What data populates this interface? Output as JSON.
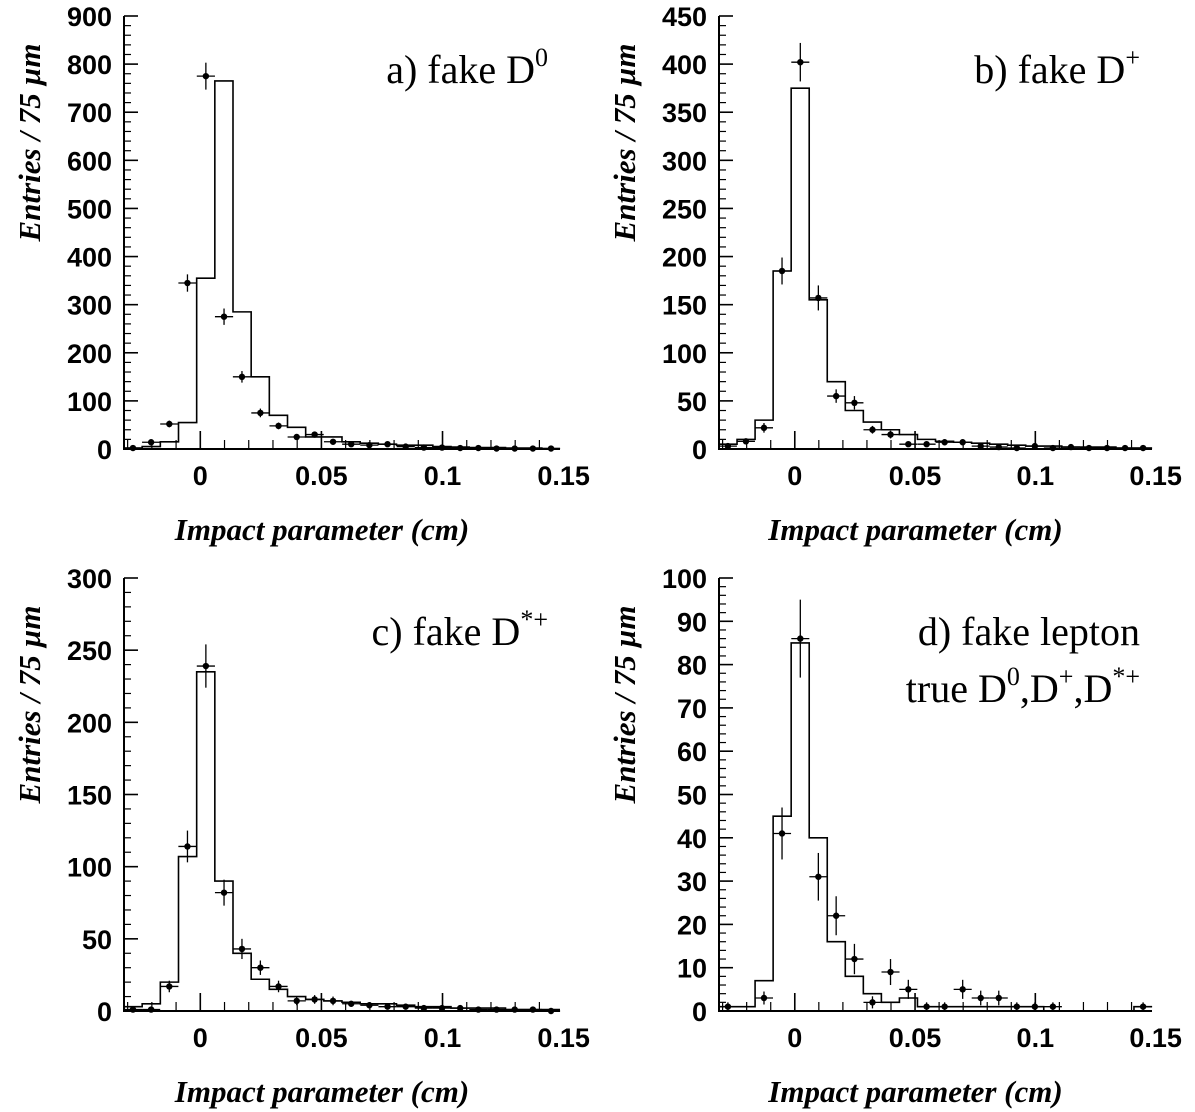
{
  "chart_data": [
    {
      "type": "histogram",
      "label_main": "a) fake D",
      "label_sup": "0",
      "label_line2": "",
      "label_line2_parts": [],
      "ylabel": "Entries / 75 µm",
      "xlabel": "Impact parameter (cm)",
      "xlim": [
        -0.0315,
        0.1485
      ],
      "ylim": [
        0,
        900
      ],
      "xticks": [
        0,
        0.05,
        0.1,
        0.15
      ],
      "xtick_labels": [
        "0",
        "0.05",
        "0.1",
        "0.15"
      ],
      "yticks": [
        0,
        100,
        200,
        300,
        400,
        500,
        600,
        700,
        800,
        900
      ],
      "ytick_labels": [
        "0",
        "100",
        "200",
        "300",
        "400",
        "500",
        "600",
        "700",
        "800",
        "900"
      ],
      "bin_width": 0.0075,
      "simulation_series": {
        "name": "",
        "bin_values": [
          2,
          5,
          15,
          55,
          355,
          765,
          285,
          150,
          70,
          45,
          25,
          25,
          15,
          12,
          10,
          8,
          8,
          5,
          4,
          3,
          3,
          2,
          2,
          1
        ]
      },
      "data_series": {
        "name": "",
        "x": [
          -0.0278,
          -0.0203,
          -0.0128,
          -0.0053,
          0.0023,
          0.0098,
          0.0172,
          0.0248,
          0.0323,
          0.0398,
          0.0472,
          0.0548,
          0.0623,
          0.0698,
          0.0773,
          0.0848,
          0.0923,
          0.0998,
          0.1073,
          0.1148,
          0.1223,
          0.1298,
          0.1373,
          0.1448
        ],
        "y": [
          2,
          14,
          52,
          345,
          775,
          275,
          150,
          75,
          48,
          25,
          30,
          15,
          10,
          8,
          10,
          5,
          3,
          3,
          2,
          2,
          1,
          1,
          1,
          1
        ],
        "yerr": [
          1,
          4,
          7,
          18,
          28,
          17,
          12,
          9,
          7,
          5,
          5,
          4,
          3,
          3,
          3,
          2,
          2,
          2,
          1,
          1,
          1,
          1,
          1,
          1
        ]
      }
    },
    {
      "type": "histogram",
      "label_main": "b) fake D",
      "label_sup": "+",
      "label_line2": "",
      "label_line2_parts": [],
      "ylabel": "Entries / 75 µm",
      "xlabel": "Impact parameter (cm)",
      "xlim": [
        -0.0315,
        0.1485
      ],
      "ylim": [
        0,
        450
      ],
      "xticks": [
        0,
        0.05,
        0.1,
        0.15
      ],
      "xtick_labels": [
        "0",
        "0.05",
        "0.1",
        "0.15"
      ],
      "yticks": [
        0,
        50,
        100,
        150,
        200,
        250,
        300,
        350,
        400,
        450
      ],
      "ytick_labels": [
        "0",
        "50",
        "100",
        "150",
        "200",
        "250",
        "300",
        "350",
        "400",
        "450"
      ],
      "bin_width": 0.0075,
      "simulation_series": {
        "name": "",
        "bin_values": [
          5,
          10,
          30,
          185,
          375,
          155,
          70,
          40,
          28,
          20,
          15,
          10,
          8,
          7,
          6,
          5,
          4,
          3,
          3,
          2,
          2,
          2,
          1,
          1
        ]
      },
      "data_series": {
        "name": "",
        "x": [
          -0.0278,
          -0.0203,
          -0.0128,
          -0.0053,
          0.0023,
          0.0098,
          0.0172,
          0.0248,
          0.0323,
          0.0398,
          0.0472,
          0.0548,
          0.0623,
          0.0698,
          0.0773,
          0.0848,
          0.0923,
          0.0998,
          0.1073,
          0.1148,
          0.1223,
          0.1298,
          0.1373,
          0.1448
        ],
        "y": [
          3,
          8,
          22,
          185,
          402,
          157,
          55,
          48,
          20,
          15,
          5,
          5,
          7,
          7,
          3,
          2,
          1,
          3,
          1,
          2,
          1,
          1,
          1,
          1
        ],
        "yerr": [
          2,
          3,
          5,
          14,
          20,
          13,
          7,
          7,
          4,
          4,
          2,
          2,
          3,
          3,
          2,
          1,
          1,
          2,
          1,
          1,
          1,
          1,
          1,
          1
        ]
      }
    },
    {
      "type": "histogram",
      "label_main": "c) fake D",
      "label_sup": "*+",
      "label_line2": "",
      "label_line2_parts": [],
      "ylabel": "Entries / 75 µm",
      "xlabel": "Impact parameter (cm)",
      "xlim": [
        -0.0315,
        0.1485
      ],
      "ylim": [
        0,
        300
      ],
      "xticks": [
        0,
        0.05,
        0.1,
        0.15
      ],
      "xtick_labels": [
        "0",
        "0.05",
        "0.1",
        "0.15"
      ],
      "yticks": [
        0,
        50,
        100,
        150,
        200,
        250,
        300
      ],
      "ytick_labels": [
        "0",
        "50",
        "100",
        "150",
        "200",
        "250",
        "300"
      ],
      "bin_width": 0.0075,
      "simulation_series": {
        "name": "",
        "bin_values": [
          3,
          5,
          20,
          107,
          235,
          90,
          40,
          22,
          15,
          10,
          8,
          7,
          6,
          5,
          5,
          4,
          3,
          3,
          2,
          2,
          2,
          1,
          1,
          1
        ]
      },
      "data_series": {
        "name": "",
        "x": [
          -0.0278,
          -0.0203,
          -0.0128,
          -0.0053,
          0.0023,
          0.0098,
          0.0172,
          0.0248,
          0.0323,
          0.0398,
          0.0472,
          0.0548,
          0.0623,
          0.0698,
          0.0773,
          0.0848,
          0.0923,
          0.0998,
          0.1073,
          0.1148,
          0.1223,
          0.1298,
          0.1373,
          0.1448
        ],
        "y": [
          1,
          1,
          17,
          114,
          239,
          82,
          43,
          30,
          17,
          7,
          8,
          7,
          5,
          4,
          3,
          3,
          2,
          2,
          2,
          1,
          1,
          1,
          1,
          0
        ],
        "yerr": [
          1,
          1,
          4,
          11,
          15,
          9,
          7,
          5,
          4,
          3,
          3,
          3,
          2,
          2,
          2,
          2,
          1,
          1,
          1,
          1,
          1,
          1,
          1,
          1
        ]
      }
    },
    {
      "type": "histogram",
      "label_main": "d) fake lepton",
      "label_sup": "",
      "label_line2": "true D0,D+,D*+",
      "label_line2_parts": [
        {
          "text": "true  D",
          "sup": false
        },
        {
          "text": "0",
          "sup": true
        },
        {
          "text": ",D",
          "sup": false
        },
        {
          "text": "+",
          "sup": true
        },
        {
          "text": ",D",
          "sup": false
        },
        {
          "text": "*+",
          "sup": true
        }
      ],
      "ylabel": "Entries / 75 µm",
      "xlabel": "Impact parameter (cm)",
      "xlim": [
        -0.0315,
        0.1485
      ],
      "ylim": [
        0,
        100
      ],
      "xticks": [
        0,
        0.05,
        0.1,
        0.15
      ],
      "xtick_labels": [
        "0",
        "0.05",
        "0.1",
        "0.15"
      ],
      "yticks": [
        0,
        10,
        20,
        30,
        40,
        50,
        60,
        70,
        80,
        90,
        100
      ],
      "ytick_labels": [
        "0",
        "10",
        "20",
        "30",
        "40",
        "50",
        "60",
        "70",
        "80",
        "90",
        "100"
      ],
      "bin_width": 0.0075,
      "simulation_series": {
        "name": "",
        "bin_values": [
          1,
          1,
          7,
          45,
          85,
          40,
          16,
          8,
          4,
          2,
          3,
          1,
          1,
          1,
          1,
          1,
          1,
          1,
          0,
          0,
          0,
          0,
          0,
          1
        ]
      },
      "data_series": {
        "name": "",
        "x": [
          -0.0278,
          -0.0128,
          -0.0053,
          0.0023,
          0.0098,
          0.0172,
          0.0248,
          0.0323,
          0.0398,
          0.0472,
          0.0548,
          0.0623,
          0.0698,
          0.0773,
          0.0848,
          0.0923,
          0.0998,
          0.1073,
          0.1448
        ],
        "y": [
          1,
          3,
          41,
          86,
          31,
          22,
          12,
          2,
          9,
          5,
          1,
          1,
          5,
          3,
          3,
          1,
          1,
          1,
          1
        ],
        "yerr": [
          1,
          1.5,
          6,
          9,
          5.5,
          4.5,
          3.5,
          1.4,
          3,
          2.2,
          1,
          1,
          2.2,
          1.7,
          1.7,
          1,
          1,
          1,
          1
        ]
      }
    }
  ]
}
